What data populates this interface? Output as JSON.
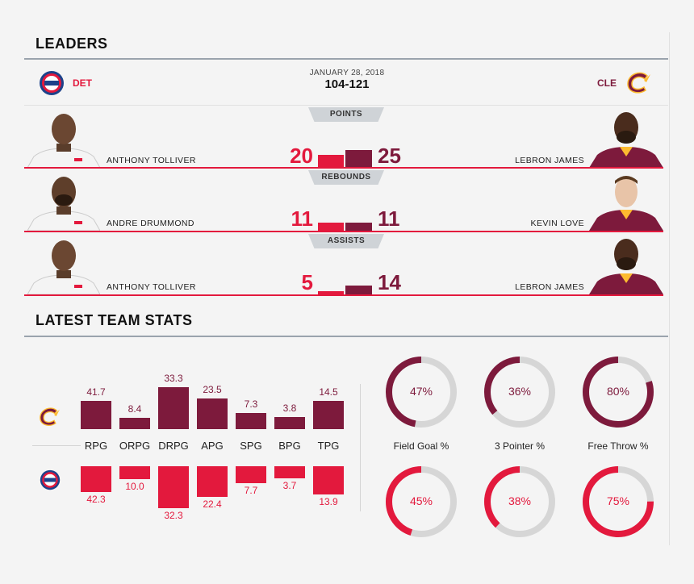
{
  "leaders": {
    "title": "LEADERS",
    "date": "JANUARY 28, 2018",
    "score": "104-121",
    "home_team": "DET",
    "away_team": "CLE",
    "categories": [
      {
        "label": "POINTS",
        "det_player": "ANTHONY TOLLIVER",
        "det_value": "20",
        "cle_player": "LEBRON JAMES",
        "cle_value": "25"
      },
      {
        "label": "REBOUNDS",
        "det_player": "ANDRE DRUMMOND",
        "det_value": "11",
        "cle_player": "KEVIN LOVE",
        "cle_value": "11"
      },
      {
        "label": "ASSISTS",
        "det_player": "ANTHONY TOLLIVER",
        "det_value": "5",
        "cle_player": "LEBRON JAMES",
        "cle_value": "14"
      }
    ]
  },
  "team_stats": {
    "title": "LATEST TEAM STATS",
    "categories": [
      "RPG",
      "ORPG",
      "DRPG",
      "APG",
      "SPG",
      "BPG",
      "TPG"
    ],
    "cle_values": [
      "41.7",
      "8.4",
      "33.3",
      "23.5",
      "7.3",
      "3.8",
      "14.5"
    ],
    "det_values": [
      "42.3",
      "10.0",
      "32.3",
      "22.4",
      "7.7",
      "3.7",
      "13.9"
    ],
    "bar_levels": {
      "cle": [
        0.63,
        0.25,
        0.93,
        0.68,
        0.35,
        0.27,
        0.63
      ],
      "det": [
        0.57,
        0.28,
        0.93,
        0.67,
        0.37,
        0.27,
        0.63
      ]
    },
    "shooting": [
      {
        "label": "Field Goal %",
        "cle": "47%",
        "det": "45%",
        "cle_frac": 0.47,
        "det_frac": 0.45
      },
      {
        "label": "3 Pointer %",
        "cle": "36%",
        "det": "38%",
        "cle_frac": 0.36,
        "det_frac": 0.38
      },
      {
        "label": "Free Throw %",
        "cle": "80%",
        "det": "75%",
        "cle_frac": 0.8,
        "det_frac": 0.75
      }
    ]
  },
  "colors": {
    "det_red": "#e3193d",
    "cle_wine": "#7d1a3c",
    "ring_track": "#d6d6d6"
  },
  "icons": {
    "det_logo": "pistons-logo-icon",
    "cle_logo": "cavaliers-logo-icon"
  }
}
